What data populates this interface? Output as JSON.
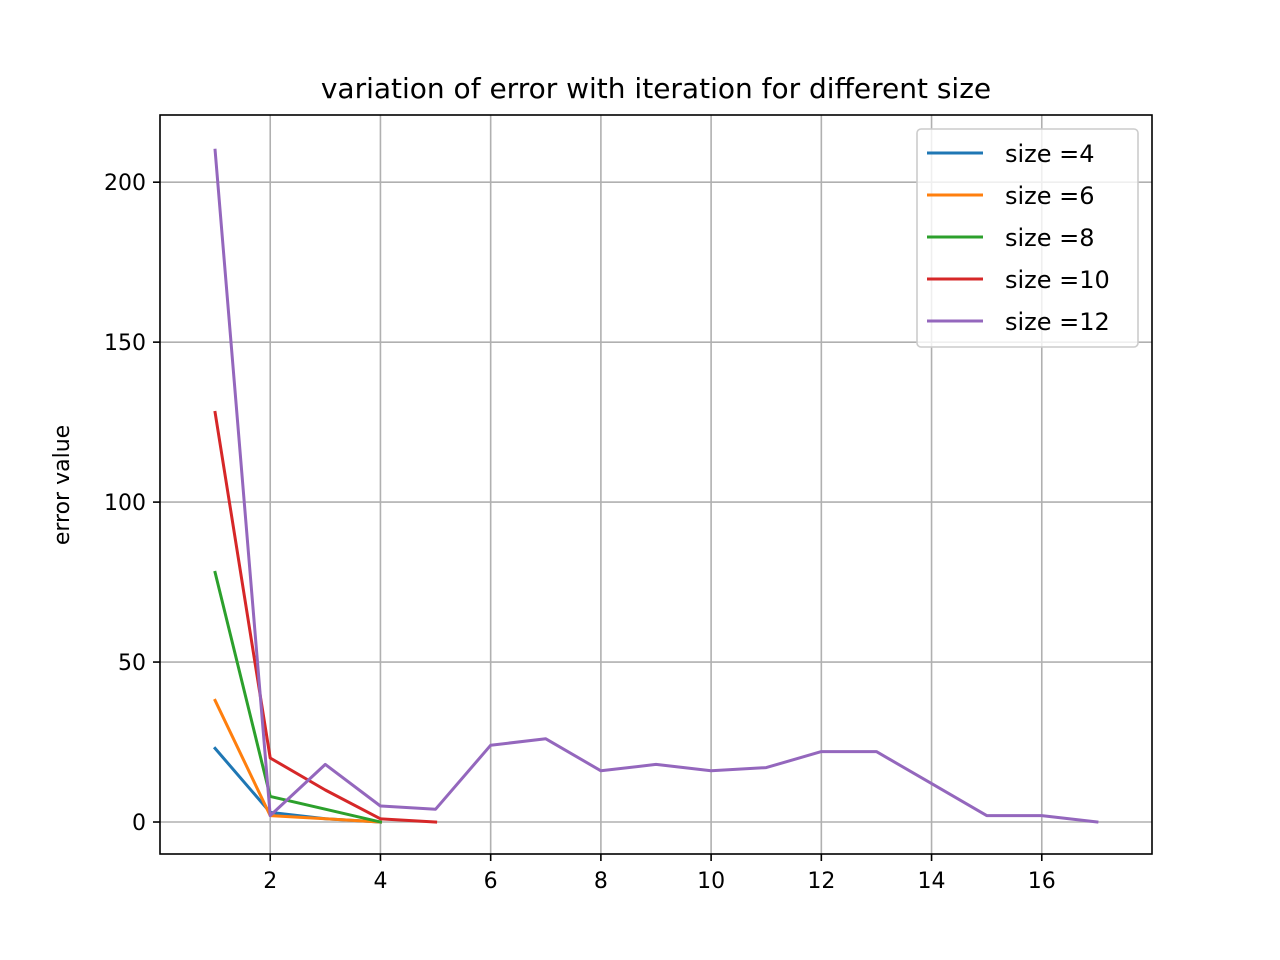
{
  "chart_data": {
    "type": "line",
    "title": "variation of error with iteration for different size",
    "xlabel": "",
    "ylabel": "error value",
    "xlim": [
      0,
      18
    ],
    "ylim": [
      -10,
      221
    ],
    "xticks": [
      2,
      4,
      6,
      8,
      10,
      12,
      14,
      16
    ],
    "yticks": [
      0,
      50,
      100,
      150,
      200
    ],
    "grid": true,
    "legend_position": "top-right",
    "series": [
      {
        "name": "size =4",
        "color": "#1f77b4",
        "x": [
          1,
          2,
          3,
          4
        ],
        "values": [
          23,
          3,
          1,
          0
        ]
      },
      {
        "name": "size =6",
        "color": "#ff7f0e",
        "x": [
          1,
          2,
          3,
          4
        ],
        "values": [
          38,
          2,
          1,
          0
        ]
      },
      {
        "name": "size =8",
        "color": "#2ca02c",
        "x": [
          1,
          2,
          3,
          4
        ],
        "values": [
          78,
          8,
          4,
          0
        ]
      },
      {
        "name": "size =10",
        "color": "#d62728",
        "x": [
          1,
          2,
          3,
          4,
          5
        ],
        "values": [
          128,
          20,
          10,
          1,
          0
        ]
      },
      {
        "name": "size =12",
        "color": "#9467bd",
        "x": [
          1,
          2,
          3,
          4,
          5,
          6,
          7,
          8,
          9,
          10,
          11,
          12,
          13,
          14,
          15,
          16,
          17
        ],
        "values": [
          210,
          2,
          18,
          5,
          4,
          24,
          26,
          16,
          18,
          16,
          17,
          22,
          22,
          12,
          2,
          2,
          0
        ]
      }
    ]
  }
}
